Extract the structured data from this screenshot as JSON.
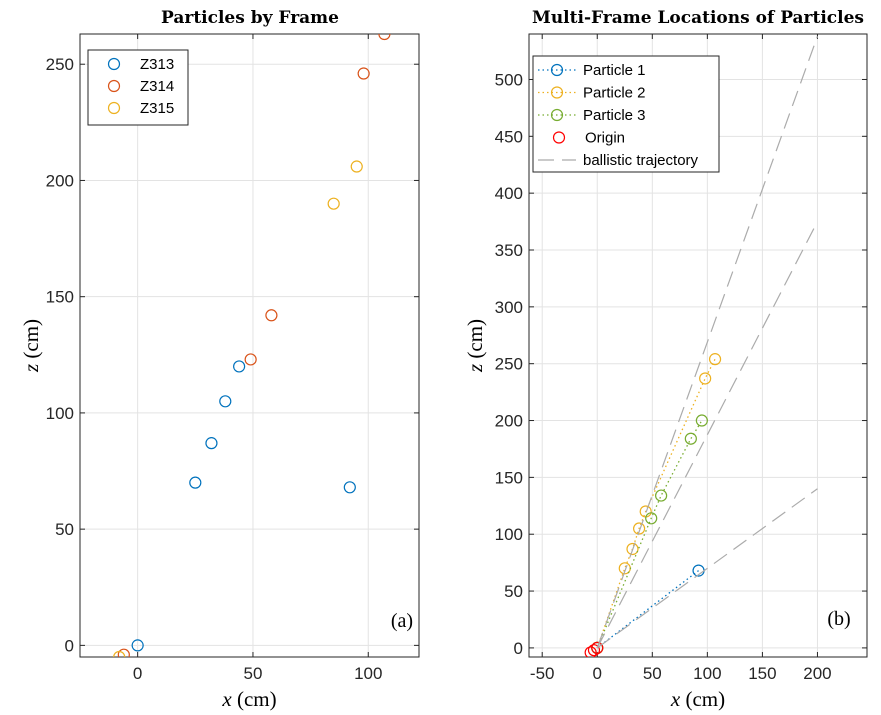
{
  "colors": {
    "blue": "#0072BD",
    "orange": "#D95319",
    "yellow": "#EDB120",
    "green": "#77AC30",
    "red": "#FF0000",
    "gray": "#ABABAB",
    "grid": "#E3E3E3",
    "axis": "#262626"
  },
  "chart_data": [
    {
      "type": "scatter",
      "title": "Particles by Frame",
      "xlabel_var": "x",
      "xlabel_unit": " (cm)",
      "ylabel_var": "z",
      "ylabel_unit": " (cm)",
      "xlim": [
        -25,
        122
      ],
      "ylim": [
        -5,
        263
      ],
      "xticks": [
        0,
        50,
        100
      ],
      "yticks": [
        0,
        50,
        100,
        150,
        200,
        250
      ],
      "grid": true,
      "legend_location": "top-left",
      "panel_label": "(a)",
      "series": [
        {
          "name": "Z313",
          "color": "blue",
          "points": [
            [
              0,
              0
            ],
            [
              25,
              70
            ],
            [
              32,
              87
            ],
            [
              38,
              105
            ],
            [
              44,
              120
            ],
            [
              92,
              68
            ]
          ]
        },
        {
          "name": "Z314",
          "color": "orange",
          "points": [
            [
              -6,
              -4
            ],
            [
              49,
              123
            ],
            [
              58,
              142
            ],
            [
              98,
              246
            ],
            [
              107,
              263
            ]
          ]
        },
        {
          "name": "Z315",
          "color": "yellow",
          "points": [
            [
              -8,
              -5
            ],
            [
              85,
              190
            ],
            [
              95,
              206
            ]
          ]
        }
      ]
    },
    {
      "type": "line",
      "title": "Multi-Frame Locations of Particles",
      "xlabel_var": "x",
      "xlabel_unit": " (cm)",
      "ylabel_var": "z",
      "ylabel_unit": " (cm)",
      "xlim": [
        -62,
        245
      ],
      "ylim": [
        -8,
        540
      ],
      "xticks": [
        -50,
        0,
        50,
        100,
        150,
        200
      ],
      "yticks": [
        0,
        50,
        100,
        150,
        200,
        250,
        300,
        350,
        400,
        450,
        500
      ],
      "grid": true,
      "legend_location": "top-left",
      "panel_label": "(b)",
      "series": [
        {
          "name": "Particle 1",
          "color": "blue",
          "line": "dotted",
          "marker": true,
          "points": [
            [
              0,
              0
            ],
            [
              92,
              68
            ]
          ]
        },
        {
          "name": "Particle 2",
          "color": "yellow",
          "line": "dotted",
          "marker": true,
          "points": [
            [
              0,
              0
            ],
            [
              25,
              70
            ],
            [
              32,
              87
            ],
            [
              38,
              105
            ],
            [
              44,
              120
            ],
            [
              98,
              237
            ],
            [
              107,
              254
            ]
          ]
        },
        {
          "name": "Particle 3",
          "color": "green",
          "line": "dotted",
          "marker": true,
          "points": [
            [
              0,
              0
            ],
            [
              49,
              114
            ],
            [
              58,
              134
            ],
            [
              85,
              184
            ],
            [
              95,
              200
            ]
          ]
        },
        {
          "name": "Origin",
          "color": "red",
          "line": "none",
          "marker": true,
          "points": [
            [
              0,
              0
            ],
            [
              -6,
              -4
            ],
            [
              -3,
              -2
            ]
          ]
        },
        {
          "name": "ballistic trajectory",
          "color": "gray",
          "line": "dashed",
          "marker": false,
          "segments": [
            [
              [
                0,
                0
              ],
              [
                200,
                538
              ]
            ],
            [
              [
                0,
                0
              ],
              [
                200,
                375
              ]
            ],
            [
              [
                0,
                0
              ],
              [
                200,
                140
              ]
            ]
          ]
        }
      ]
    }
  ]
}
